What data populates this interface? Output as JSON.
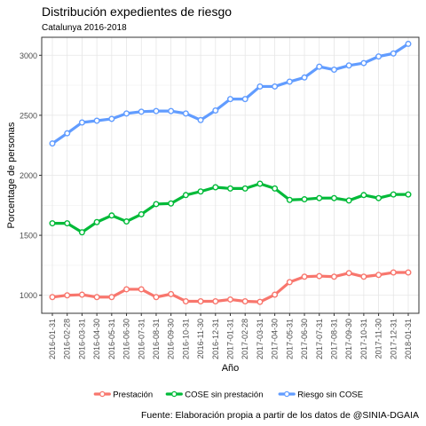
{
  "chart_data": {
    "type": "line",
    "title": "Distribución expedientes de riesgo",
    "subtitle": "Catalunya 2016-2018",
    "xlabel": "Año",
    "ylabel": "Porcentage de personas",
    "caption": "Fuente: Elaboración propia a partir de los datos de @SINIA-DGAIA",
    "legend_position": "bottom",
    "grid": true,
    "ylim": [
      850,
      3150
    ],
    "yticks": [
      1000,
      1500,
      2000,
      2500,
      3000
    ],
    "categories": [
      "2016-01-31",
      "2016-02-28",
      "2016-03-31",
      "2016-04-30",
      "2016-05-31",
      "2016-06-30",
      "2016-07-31",
      "2016-08-31",
      "2016-09-30",
      "2016-10-31",
      "2016-11-30",
      "2016-12-31",
      "2017-01-31",
      "2017-02-28",
      "2017-03-31",
      "2017-04-30",
      "2017-05-31",
      "2017-06-30",
      "2017-07-31",
      "2017-08-31",
      "2017-09-30",
      "2017-10-31",
      "2017-11-30",
      "2017-12-31",
      "2018-01-31"
    ],
    "series": [
      {
        "name": "Prestación",
        "color": "#F8766D",
        "values": [
          985,
          1000,
          1005,
          985,
          985,
          1050,
          1050,
          985,
          1010,
          950,
          950,
          950,
          965,
          950,
          945,
          1005,
          1110,
          1155,
          1160,
          1155,
          1185,
          1155,
          1170,
          1190,
          1190
        ]
      },
      {
        "name": "COSE sin prestación",
        "color": "#00BA38",
        "values": [
          1600,
          1600,
          1525,
          1610,
          1665,
          1615,
          1675,
          1760,
          1765,
          1835,
          1865,
          1900,
          1890,
          1890,
          1930,
          1890,
          1795,
          1800,
          1810,
          1810,
          1790,
          1835,
          1810,
          1840,
          1840
        ]
      },
      {
        "name": "Riesgo sin COSE",
        "color": "#619CFF",
        "values": [
          2265,
          2350,
          2440,
          2455,
          2470,
          2515,
          2530,
          2535,
          2535,
          2515,
          2460,
          2540,
          2635,
          2635,
          2740,
          2740,
          2780,
          2815,
          2905,
          2880,
          2915,
          2935,
          2990,
          3015,
          3095
        ]
      }
    ]
  }
}
